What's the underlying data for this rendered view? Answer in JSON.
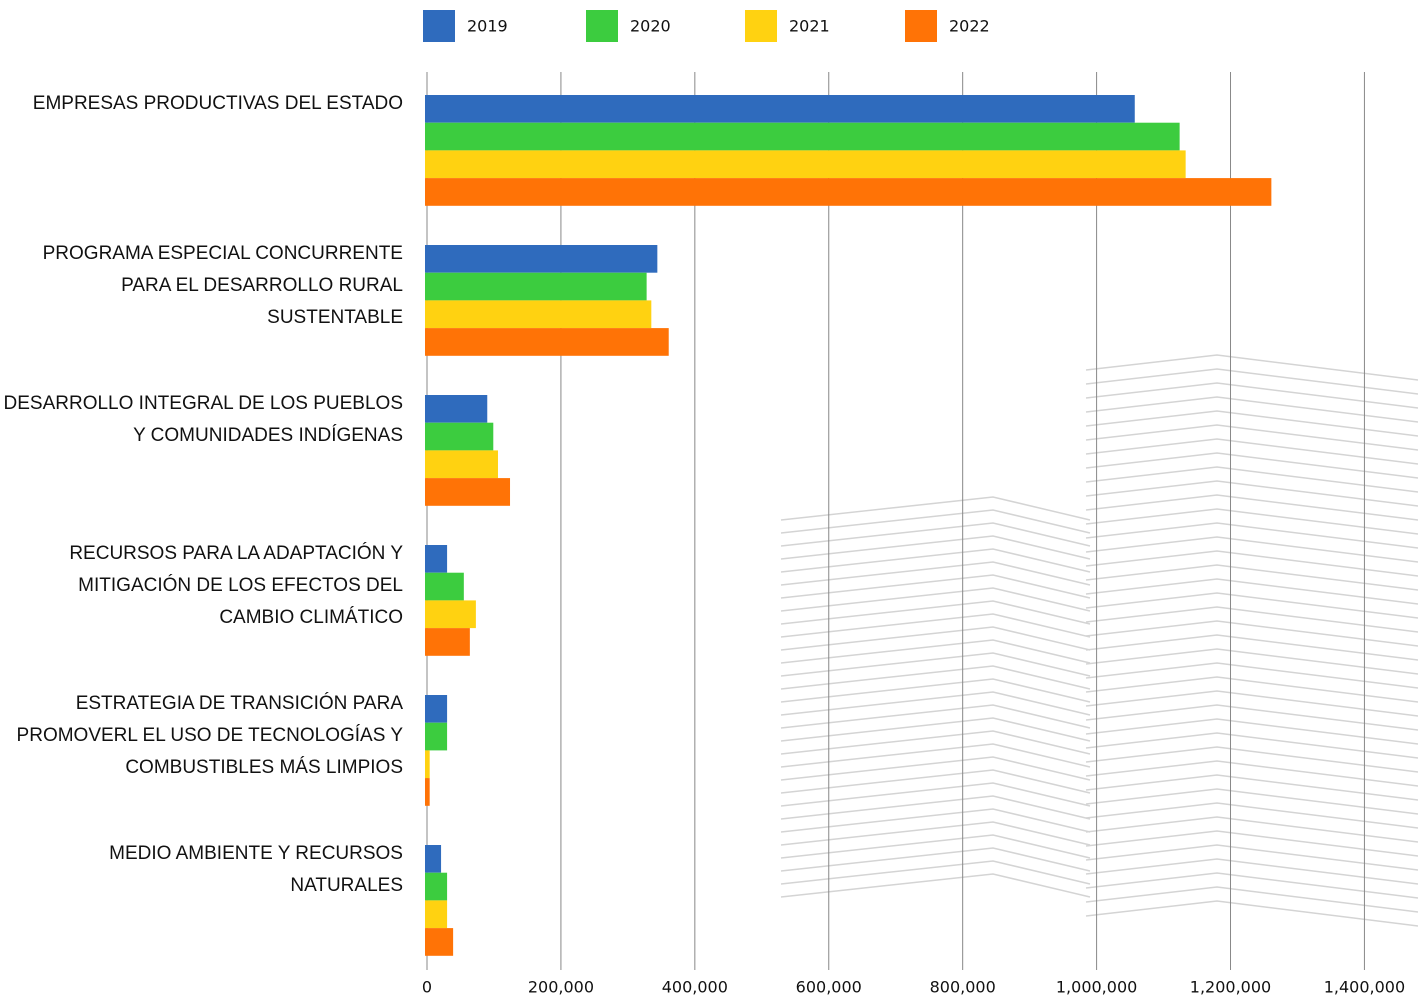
{
  "chart_data": {
    "type": "hbar",
    "categories": [
      "EMPRESAS PRODUCTIVAS DEL ESTADO",
      "PROGRAMA ESPECIAL CONCURRENTE PARA EL DESARROLLO RURAL SUSTENTABLE",
      "DESARROLLO INTEGRAL DE LOS PUEBLOS Y COMUNIDADES INDÍGENAS",
      "RECURSOS PARA LA ADAPTACIÓN Y MITIGACIÓN DE LOS EFECTOS DEL CAMBIO CLIMÁTICO",
      "ESTRATEGIA DE TRANSICIÓN PARA PROMOVERL EL USO DE TECNOLOGÍAS Y COMBUSTIBLES MÁS LIMPIOS",
      "MEDIO AMBIENTE Y RECURSOS NATURALES"
    ],
    "series": [
      {
        "name": "2019",
        "color": "#2f6bbd",
        "values": [
          1057000,
          344000,
          90000,
          30000,
          30000,
          21000
        ]
      },
      {
        "name": "2020",
        "color": "#3ccc3f",
        "values": [
          1124000,
          328000,
          99000,
          55000,
          30000,
          30000
        ]
      },
      {
        "name": "2021",
        "color": "#ffd211",
        "values": [
          1133000,
          335000,
          106000,
          73000,
          4000,
          30000
        ]
      },
      {
        "name": "2022",
        "color": "#ff7306",
        "values": [
          1261000,
          361000,
          124000,
          64000,
          4000,
          39000
        ]
      }
    ],
    "xlim": [
      0,
      1480000
    ],
    "xticks": [
      0,
      {
        "value": 200000,
        "label": "200,000"
      },
      {
        "value": 400000,
        "label": "400,000"
      },
      {
        "value": 600000,
        "label": "600,000"
      },
      {
        "value": 800000,
        "label": "800,000"
      },
      {
        "value": 1000000,
        "label": "1,000,000"
      },
      {
        "value": 1200000,
        "label": "1,200,000"
      },
      {
        "value": 1400000,
        "label": "1,400,000"
      }
    ],
    "grid": true,
    "legend": "top"
  }
}
